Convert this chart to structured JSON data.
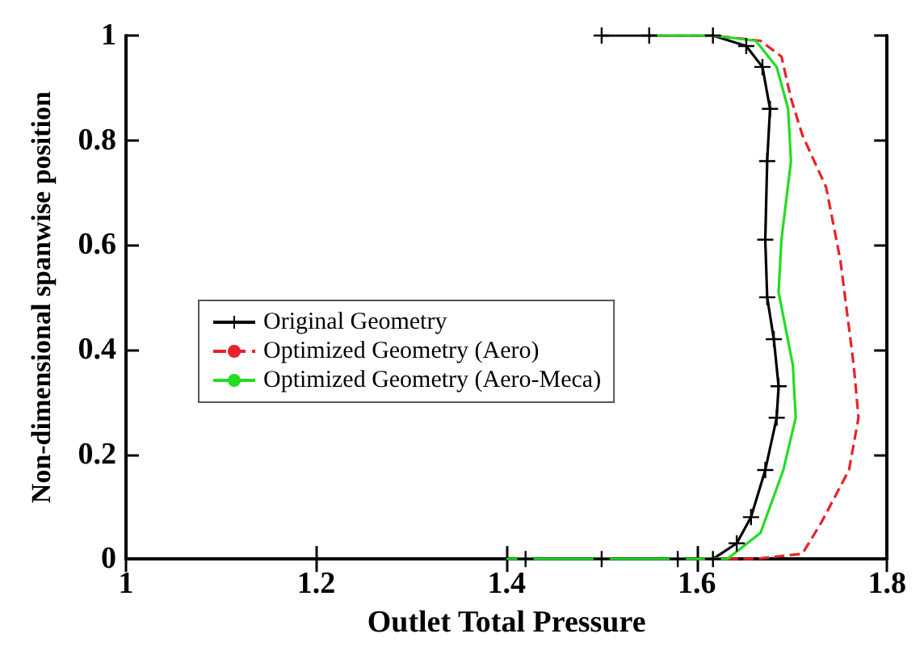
{
  "chart_data": {
    "type": "line",
    "xlabel": "Outlet Total Pressure",
    "ylabel": "Non-dimensional spanwise position",
    "xlim": [
      1,
      1.8
    ],
    "xticks": [
      1,
      1.2,
      1.4,
      1.6,
      1.8
    ],
    "ylim": [
      0,
      1
    ],
    "yticks": [
      0,
      0.2,
      0.4,
      0.6,
      0.8,
      1
    ],
    "legend": "left",
    "grid": false,
    "series": [
      {
        "name": "Original Geometry",
        "color": "#000000",
        "marker": "cross",
        "line_style": "solid",
        "x": [
          1.42,
          1.5,
          1.58,
          1.617,
          1.642,
          1.657,
          1.672,
          1.684,
          1.686,
          1.681,
          1.674,
          1.672,
          1.674,
          1.677,
          1.669,
          1.652,
          1.617,
          1.55,
          1.5
        ],
        "values": [
          0,
          0,
          0,
          0,
          0.03,
          0.08,
          0.17,
          0.27,
          0.33,
          0.42,
          0.5,
          0.61,
          0.76,
          0.86,
          0.94,
          0.98,
          1,
          1,
          1
        ]
      },
      {
        "name": "Optimized Geometry (Aero)",
        "color": "#e8222a",
        "marker": "none",
        "line_style": "dashed",
        "x": [
          1.6,
          1.66,
          1.711,
          1.731,
          1.76,
          1.77,
          1.765,
          1.751,
          1.736,
          1.711,
          1.699,
          1.689,
          1.667,
          1.617,
          1.55
        ],
        "values": [
          0,
          0,
          0.01,
          0.07,
          0.17,
          0.27,
          0.37,
          0.57,
          0.71,
          0.81,
          0.88,
          0.96,
          0.99,
          1,
          1
        ]
      },
      {
        "name": "Optimized Geometry (Aero-Meca)",
        "color": "#22dd22",
        "marker": "none",
        "line_style": "solid",
        "x": [
          1.4,
          1.5,
          1.6,
          1.632,
          1.667,
          1.691,
          1.704,
          1.701,
          1.686,
          1.689,
          1.699,
          1.696,
          1.684,
          1.662,
          1.617,
          1.55
        ],
        "values": [
          0,
          0,
          0,
          0,
          0.05,
          0.17,
          0.27,
          0.37,
          0.51,
          0.61,
          0.76,
          0.86,
          0.94,
          0.99,
          1,
          1
        ]
      }
    ]
  }
}
